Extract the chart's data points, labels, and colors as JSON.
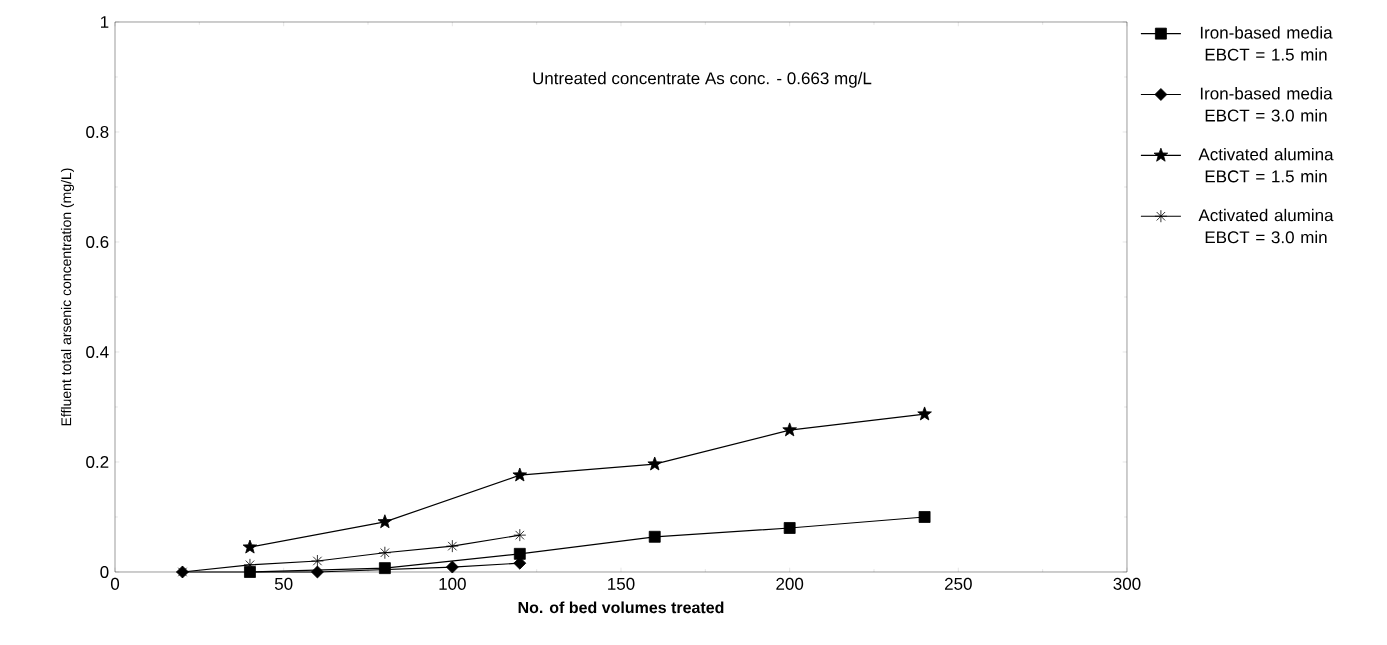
{
  "chart_data": {
    "type": "line",
    "xlabel": "No. of bed volumes treated",
    "ylabel": "Effluent total arsenic concentration (mg/L)",
    "annotations": [
      "Untreated concentrate As conc. - 0.663 mg/L"
    ],
    "xlim": [
      0,
      300
    ],
    "xticks": [
      0,
      50,
      100,
      150,
      200,
      250,
      300
    ],
    "ylim": [
      0,
      1
    ],
    "yticks": [
      0,
      0.2,
      0.4,
      0.6,
      0.8,
      1
    ],
    "legend": "right",
    "line_style": "solid",
    "series": [
      {
        "name": "Iron-based media EBCT = 1.5 min",
        "color": "#000000",
        "marker": "square",
        "x": [
          40,
          80,
          120,
          160,
          200,
          240
        ],
        "values": [
          0,
          0.007,
          0.033,
          0.064,
          0.08,
          0.1
        ]
      },
      {
        "name": "Iron-based media EBCT = 3.0 min",
        "color": "#000000",
        "marker": "diamond",
        "x": [
          20,
          60,
          100,
          120
        ],
        "values": [
          0,
          0,
          0.009,
          0.016
        ]
      },
      {
        "name": "Activated alumina EBCT = 1.5 min",
        "color": "#000000",
        "marker": "star",
        "x": [
          40,
          80,
          120,
          160,
          200,
          240
        ],
        "values": [
          0.045,
          0.091,
          0.176,
          0.196,
          0.258,
          0.287
        ]
      },
      {
        "name": "Activated alumina EBCT = 3.0 min",
        "color": "#000000",
        "marker": "cross",
        "x": [
          20,
          40,
          60,
          80,
          100,
          120
        ],
        "values": [
          0,
          0.013,
          0.02,
          0.035,
          0.047,
          0.067
        ]
      }
    ]
  }
}
